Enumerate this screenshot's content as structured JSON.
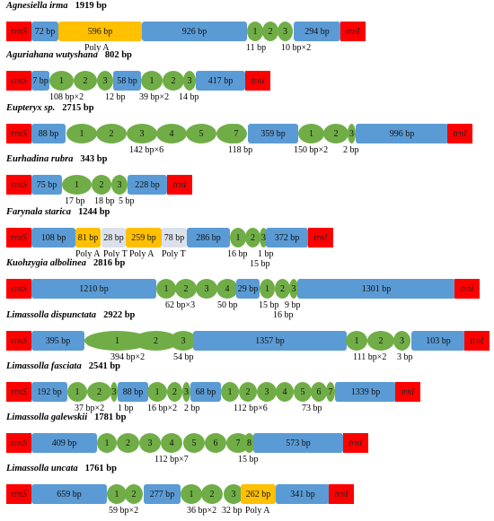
{
  "gene_labels": {
    "left": "rrnS",
    "right": "trnI"
  },
  "unit": "bp",
  "rows": [
    {
      "species": "Agnesiella irma",
      "length": "1919 bp",
      "segments": [
        {
          "kind": "rrnS"
        },
        {
          "kind": "blue",
          "text": "72 bp"
        },
        {
          "kind": "yellow",
          "text": "596 bp"
        },
        {
          "kind": "blue",
          "text": "926 bp"
        },
        {
          "kind": "oval",
          "text": "1"
        },
        {
          "kind": "oval",
          "text": "2"
        },
        {
          "kind": "oval",
          "text": "3"
        },
        {
          "kind": "blue",
          "text": "294 bp"
        },
        {
          "kind": "trnI"
        }
      ],
      "labels": [
        "Poly A",
        "11 bp",
        "10 bp×2"
      ]
    },
    {
      "species": "Aguriahana wutyshana",
      "length": "802 bp",
      "segments": [
        {
          "kind": "rrnS"
        },
        {
          "kind": "blue",
          "text": "7 bp"
        },
        {
          "kind": "oval",
          "text": "1"
        },
        {
          "kind": "oval",
          "text": "2"
        },
        {
          "kind": "oval",
          "text": "3"
        },
        {
          "kind": "blue",
          "text": "58 bp"
        },
        {
          "kind": "oval",
          "text": "1"
        },
        {
          "kind": "oval",
          "text": "2"
        },
        {
          "kind": "oval",
          "text": "3"
        },
        {
          "kind": "blue",
          "text": "417 bp"
        },
        {
          "kind": "trnI"
        }
      ],
      "labels": [
        "108 bp×2",
        "12 bp",
        "39 bp×2",
        "14 bp"
      ]
    },
    {
      "species": "Eupteryx sp.",
      "length": "2715 bp",
      "segments": [
        {
          "kind": "rrnS"
        },
        {
          "kind": "blue",
          "text": "88 bp"
        },
        {
          "kind": "oval",
          "text": "1"
        },
        {
          "kind": "oval",
          "text": "2"
        },
        {
          "kind": "oval",
          "text": "3"
        },
        {
          "kind": "oval",
          "text": "4"
        },
        {
          "kind": "oval",
          "text": "5"
        },
        {
          "kind": "oval",
          "text": "6"
        },
        {
          "kind": "oval",
          "text": "7"
        },
        {
          "kind": "blue",
          "text": "359 bp"
        },
        {
          "kind": "oval",
          "text": "1"
        },
        {
          "kind": "oval",
          "text": "2"
        },
        {
          "kind": "oval",
          "text": "3"
        },
        {
          "kind": "blue",
          "text": "996 bp"
        },
        {
          "kind": "trnI"
        }
      ],
      "labels": [
        "142 bp×6",
        "118 bp",
        "150 bp×2",
        "2 bp"
      ]
    },
    {
      "species": "Eurhadina rubra",
      "length": "343 bp",
      "segments": [
        {
          "kind": "rrnS"
        },
        {
          "kind": "blue",
          "text": "75 bp"
        },
        {
          "kind": "oval",
          "text": "1"
        },
        {
          "kind": "oval",
          "text": "2"
        },
        {
          "kind": "oval",
          "text": "3"
        },
        {
          "kind": "blue",
          "text": "228 bp"
        },
        {
          "kind": "trnI"
        }
      ],
      "labels": [
        "17 bp",
        "18 bp",
        "5 bp"
      ]
    },
    {
      "species": "Farynala starica",
      "length": "1244 bp",
      "segments": [
        {
          "kind": "rrnS"
        },
        {
          "kind": "blue",
          "text": "108 bp"
        },
        {
          "kind": "yellow",
          "text": "81 bp"
        },
        {
          "kind": "grey",
          "text": "28 bp"
        },
        {
          "kind": "yellow",
          "text": "259 bp"
        },
        {
          "kind": "grey",
          "text": "78 bp"
        },
        {
          "kind": "blue",
          "text": "286 bp"
        },
        {
          "kind": "oval",
          "text": "1"
        },
        {
          "kind": "oval",
          "text": "2"
        },
        {
          "kind": "oval",
          "text": "3"
        },
        {
          "kind": "blue",
          "text": "372 bp"
        },
        {
          "kind": "trnI"
        }
      ],
      "labels": [
        "Poly A",
        "Poly T",
        "Poly A",
        "Poly T",
        "16 bp",
        "15 bp",
        "1 bp"
      ]
    },
    {
      "species": "Kuohzygia albolinea",
      "length": "2816 bp",
      "segments": [
        {
          "kind": "rrnS"
        },
        {
          "kind": "blue",
          "text": "1210 bp"
        },
        {
          "kind": "oval",
          "text": "1"
        },
        {
          "kind": "oval",
          "text": "2"
        },
        {
          "kind": "oval",
          "text": "3"
        },
        {
          "kind": "oval",
          "text": "4"
        },
        {
          "kind": "blue",
          "text": "29 bp"
        },
        {
          "kind": "oval",
          "text": "1"
        },
        {
          "kind": "oval",
          "text": "2"
        },
        {
          "kind": "oval",
          "text": "3"
        },
        {
          "kind": "blue",
          "text": "1301 bp"
        },
        {
          "kind": "trnI"
        }
      ],
      "labels": [
        "62 bp×3",
        "50 bp",
        "15 bp",
        "9 bp",
        "16 bp"
      ]
    },
    {
      "species": "Limassolla dispunctata",
      "length": "2922 bp",
      "segments": [
        {
          "kind": "rrnS"
        },
        {
          "kind": "blue",
          "text": "395 bp"
        },
        {
          "kind": "oval",
          "text": "1"
        },
        {
          "kind": "oval",
          "text": "2"
        },
        {
          "kind": "oval",
          "text": "3"
        },
        {
          "kind": "blue",
          "text": "1357 bp"
        },
        {
          "kind": "oval",
          "text": "1"
        },
        {
          "kind": "oval",
          "text": "2"
        },
        {
          "kind": "oval",
          "text": "3"
        },
        {
          "kind": "blue",
          "text": "103 bp"
        },
        {
          "kind": "trnI"
        }
      ],
      "labels": [
        "394 bp×2",
        "54 bp",
        "111 bp×2",
        "3 bp"
      ]
    },
    {
      "species": "Limassolla fasciata",
      "length": "2541 bp",
      "segments": [
        {
          "kind": "rrnS"
        },
        {
          "kind": "blue",
          "text": "192 bp"
        },
        {
          "kind": "oval",
          "text": "1"
        },
        {
          "kind": "oval",
          "text": "2"
        },
        {
          "kind": "oval",
          "text": "3"
        },
        {
          "kind": "blue",
          "text": "88 bp"
        },
        {
          "kind": "oval",
          "text": "1"
        },
        {
          "kind": "oval",
          "text": "2"
        },
        {
          "kind": "oval",
          "text": "3"
        },
        {
          "kind": "blue",
          "text": "68 bp"
        },
        {
          "kind": "oval",
          "text": "1"
        },
        {
          "kind": "oval",
          "text": "2"
        },
        {
          "kind": "oval",
          "text": "3"
        },
        {
          "kind": "oval",
          "text": "4"
        },
        {
          "kind": "oval",
          "text": "5"
        },
        {
          "kind": "oval",
          "text": "6"
        },
        {
          "kind": "oval",
          "text": "7"
        },
        {
          "kind": "blue",
          "text": "1339 bp"
        },
        {
          "kind": "trnI"
        }
      ],
      "labels": [
        "37 bp×2",
        "1 bp",
        "16 bp×2",
        "2 bp",
        "112 bp×6",
        "73 bp"
      ]
    },
    {
      "species": "Limassolla galewskii",
      "length": "1781 bp",
      "segments": [
        {
          "kind": "rrnS"
        },
        {
          "kind": "blue",
          "text": "409 bp"
        },
        {
          "kind": "oval",
          "text": "1"
        },
        {
          "kind": "oval",
          "text": "2"
        },
        {
          "kind": "oval",
          "text": "3"
        },
        {
          "kind": "oval",
          "text": "4"
        },
        {
          "kind": "oval",
          "text": "5"
        },
        {
          "kind": "oval",
          "text": "6"
        },
        {
          "kind": "oval",
          "text": "7"
        },
        {
          "kind": "oval",
          "text": "8"
        },
        {
          "kind": "blue",
          "text": "573 bp"
        },
        {
          "kind": "trnI"
        }
      ],
      "labels": [
        "112 bp×7",
        "15 bp"
      ]
    },
    {
      "species": "Limassolla uncata",
      "length": "1761 bp",
      "segments": [
        {
          "kind": "rrnS"
        },
        {
          "kind": "blue",
          "text": "659 bp"
        },
        {
          "kind": "oval",
          "text": "1"
        },
        {
          "kind": "oval",
          "text": "2"
        },
        {
          "kind": "blue",
          "text": "277 bp"
        },
        {
          "kind": "oval",
          "text": "1"
        },
        {
          "kind": "oval",
          "text": "2"
        },
        {
          "kind": "oval",
          "text": "3"
        },
        {
          "kind": "yellow",
          "text": "262 bp"
        },
        {
          "kind": "blue",
          "text": "341 bp"
        },
        {
          "kind": "trnI"
        }
      ],
      "labels": [
        "59 bp×2",
        "36 bp×2",
        "32 bp",
        "Poly A"
      ]
    }
  ]
}
